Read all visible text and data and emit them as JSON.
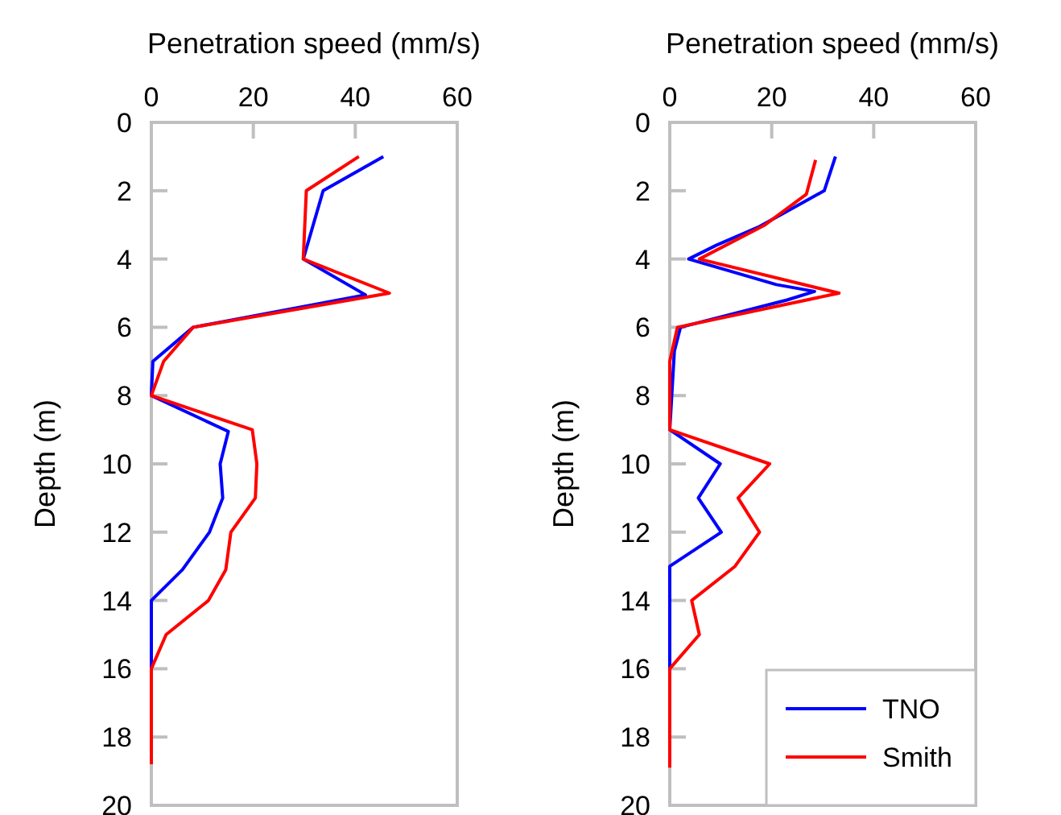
{
  "chart_data": [
    {
      "type": "line",
      "xlabel": "Penetration speed (mm/s)",
      "ylabel": "Depth (m)",
      "xlim": [
        0,
        60
      ],
      "xticks": [
        0,
        20,
        40,
        60
      ],
      "ylim": [
        20,
        0
      ],
      "yticks": [
        0,
        2,
        4,
        6,
        8,
        10,
        12,
        14,
        16,
        18,
        20
      ],
      "grid": false,
      "legend": false,
      "series": [
        {
          "color": "#0000ff",
          "x": [
            45.5,
            33.7,
            29.8,
            42,
            8.2,
            0.3,
            0,
            15.1,
            13.5,
            14,
            11.4,
            6.1,
            0,
            0
          ],
          "values": [
            1,
            2,
            4,
            5.05,
            6,
            7,
            8,
            9.05,
            10,
            11,
            12,
            13.1,
            14,
            16
          ]
        },
        {
          "color": "#ff0000",
          "x": [
            40.7,
            30.4,
            29.8,
            46.7,
            8.2,
            2.4,
            0,
            19.8,
            20.7,
            20.4,
            15.6,
            14.6,
            11.2,
            2.9,
            0,
            0
          ],
          "values": [
            1,
            2,
            4,
            5,
            6,
            7,
            8,
            9,
            10,
            11,
            12,
            13.1,
            14,
            15,
            16,
            18.8
          ]
        }
      ]
    },
    {
      "type": "line",
      "xlabel": "Penetration speed (mm/s)",
      "ylabel": "Depth (m)",
      "xlim": [
        0,
        60
      ],
      "xticks": [
        0,
        20,
        40,
        60
      ],
      "ylim": [
        20,
        0
      ],
      "yticks": [
        0,
        2,
        4,
        6,
        8,
        10,
        12,
        14,
        16,
        18,
        20
      ],
      "grid": false,
      "legend": "bottom right",
      "series": [
        {
          "name": "TNO",
          "color": "#0000ff",
          "x": [
            32.5,
            30.3,
            17.6,
            9.1,
            3.7,
            20.9,
            28.4,
            23,
            2.1,
            0.9,
            0,
            9.9,
            5.6,
            10.1,
            0,
            0
          ],
          "values": [
            1,
            2,
            3.05,
            3.6,
            4,
            4.75,
            4.95,
            5.2,
            6,
            6.7,
            9,
            10,
            11,
            12,
            13,
            16
          ]
        },
        {
          "name": "Smith",
          "color": "#ff0000",
          "x": [
            28.6,
            26.8,
            18.7,
            5.8,
            33.2,
            1.5,
            0,
            0,
            19.6,
            13.4,
            17.6,
            12.8,
            4.3,
            5.8,
            0,
            0
          ],
          "values": [
            1.1,
            2.1,
            3,
            4,
            5,
            6,
            7,
            9,
            10,
            11,
            12,
            13,
            14,
            15,
            16,
            18.9
          ]
        }
      ]
    }
  ]
}
